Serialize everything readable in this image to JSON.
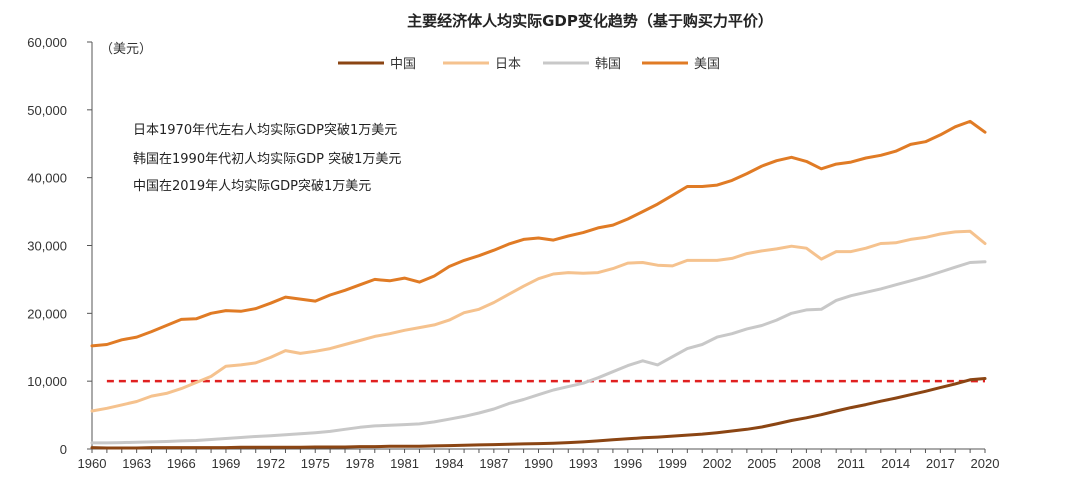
{
  "chart_data": {
    "type": "line",
    "title": "主要经济体人均实际GDP变化趋势（基于购买力平价）",
    "ylabel": "（美元）",
    "xlabel": "",
    "ylim": [
      0,
      60000
    ],
    "yticks": [
      0,
      10000,
      20000,
      30000,
      40000,
      50000,
      60000
    ],
    "ytick_labels": [
      "0",
      "10,000",
      "20,000",
      "30,000",
      "40,000",
      "50,000",
      "60,000"
    ],
    "xlim": [
      1960,
      2020
    ],
    "xtick_labels": [
      "1960",
      "1963",
      "1966",
      "1969",
      "1972",
      "1975",
      "1978",
      "1981",
      "1984",
      "1987",
      "1990",
      "1993",
      "1996",
      "1999",
      "2002",
      "2005",
      "2008",
      "2011",
      "2014",
      "2017",
      "2020"
    ],
    "grid": false,
    "legend_position": "top",
    "annotations": [
      "日本1970年代左右人均实际GDP突破1万美元",
      "韩国在1990年代初人均实际GDP 突破1万美元",
      "中国在2019年人均实际GDP突破1万美元"
    ],
    "reference_line": {
      "y": 10000,
      "color": "#e02020",
      "style": "dashed"
    },
    "x": [
      1960,
      1961,
      1962,
      1963,
      1964,
      1965,
      1966,
      1967,
      1968,
      1969,
      1970,
      1971,
      1972,
      1973,
      1974,
      1975,
      1976,
      1977,
      1978,
      1979,
      1980,
      1981,
      1982,
      1983,
      1984,
      1985,
      1986,
      1987,
      1988,
      1989,
      1990,
      1991,
      1992,
      1993,
      1994,
      1995,
      1996,
      1997,
      1998,
      1999,
      2000,
      2001,
      2002,
      2003,
      2004,
      2005,
      2006,
      2007,
      2008,
      2009,
      2010,
      2011,
      2012,
      2013,
      2014,
      2015,
      2016,
      2017,
      2018,
      2019,
      2020
    ],
    "series": [
      {
        "name": "中国",
        "color": "#8b4513",
        "values": [
          200,
          150,
          150,
          150,
          200,
          200,
          200,
          200,
          200,
          200,
          250,
          250,
          250,
          250,
          250,
          300,
          300,
          300,
          350,
          350,
          400,
          400,
          400,
          450,
          500,
          550,
          600,
          650,
          700,
          750,
          800,
          850,
          950,
          1050,
          1200,
          1350,
          1500,
          1650,
          1750,
          1900,
          2050,
          2200,
          2400,
          2650,
          2900,
          3250,
          3700,
          4200,
          4600,
          5050,
          5600,
          6100,
          6550,
          7050,
          7500,
          8000,
          8500,
          9050,
          9600,
          10200,
          10400
        ]
      },
      {
        "name": "日本",
        "color": "#f5c28e",
        "values": [
          5600,
          6000,
          6500,
          7000,
          7800,
          8200,
          8900,
          9800,
          10700,
          12200,
          12400,
          12700,
          13500,
          14500,
          14100,
          14400,
          14800,
          15400,
          16000,
          16600,
          17000,
          17500,
          17900,
          18300,
          19000,
          20100,
          20600,
          21600,
          22800,
          24000,
          25100,
          25800,
          26000,
          25900,
          26000,
          26600,
          27400,
          27500,
          27100,
          27000,
          27800,
          27800,
          27800,
          28100,
          28800,
          29200,
          29500,
          29900,
          29600,
          28000,
          29100,
          29100,
          29600,
          30300,
          30400,
          30900,
          31200,
          31700,
          32000,
          32100,
          30300
        ]
      },
      {
        "name": "韩国",
        "color": "#c8c8c8",
        "values": [
          900,
          900,
          950,
          1000,
          1050,
          1100,
          1200,
          1250,
          1400,
          1550,
          1700,
          1850,
          1950,
          2100,
          2250,
          2400,
          2600,
          2900,
          3200,
          3400,
          3500,
          3600,
          3700,
          4000,
          4400,
          4800,
          5300,
          5900,
          6700,
          7300,
          8000,
          8700,
          9200,
          9700,
          10500,
          11400,
          12300,
          13000,
          12400,
          13600,
          14800,
          15400,
          16500,
          17000,
          17700,
          18200,
          19000,
          20000,
          20500,
          20600,
          21900,
          22600,
          23100,
          23600,
          24200,
          24800,
          25400,
          26100,
          26800,
          27500,
          27600
        ]
      },
      {
        "name": "美国",
        "color": "#e07b25",
        "values": [
          15200,
          15400,
          16100,
          16500,
          17300,
          18200,
          19100,
          19200,
          20000,
          20400,
          20300,
          20700,
          21500,
          22400,
          22100,
          21800,
          22700,
          23400,
          24200,
          25000,
          24800,
          25200,
          24600,
          25500,
          26900,
          27800,
          28500,
          29300,
          30200,
          30900,
          31100,
          30800,
          31400,
          31900,
          32600,
          33000,
          33900,
          35000,
          36100,
          37400,
          38700,
          38700,
          38900,
          39600,
          40600,
          41700,
          42500,
          43000,
          42400,
          41300,
          42000,
          42300,
          42900,
          43300,
          43900,
          44900,
          45300,
          46300,
          47500,
          48300,
          46700
        ]
      }
    ]
  }
}
